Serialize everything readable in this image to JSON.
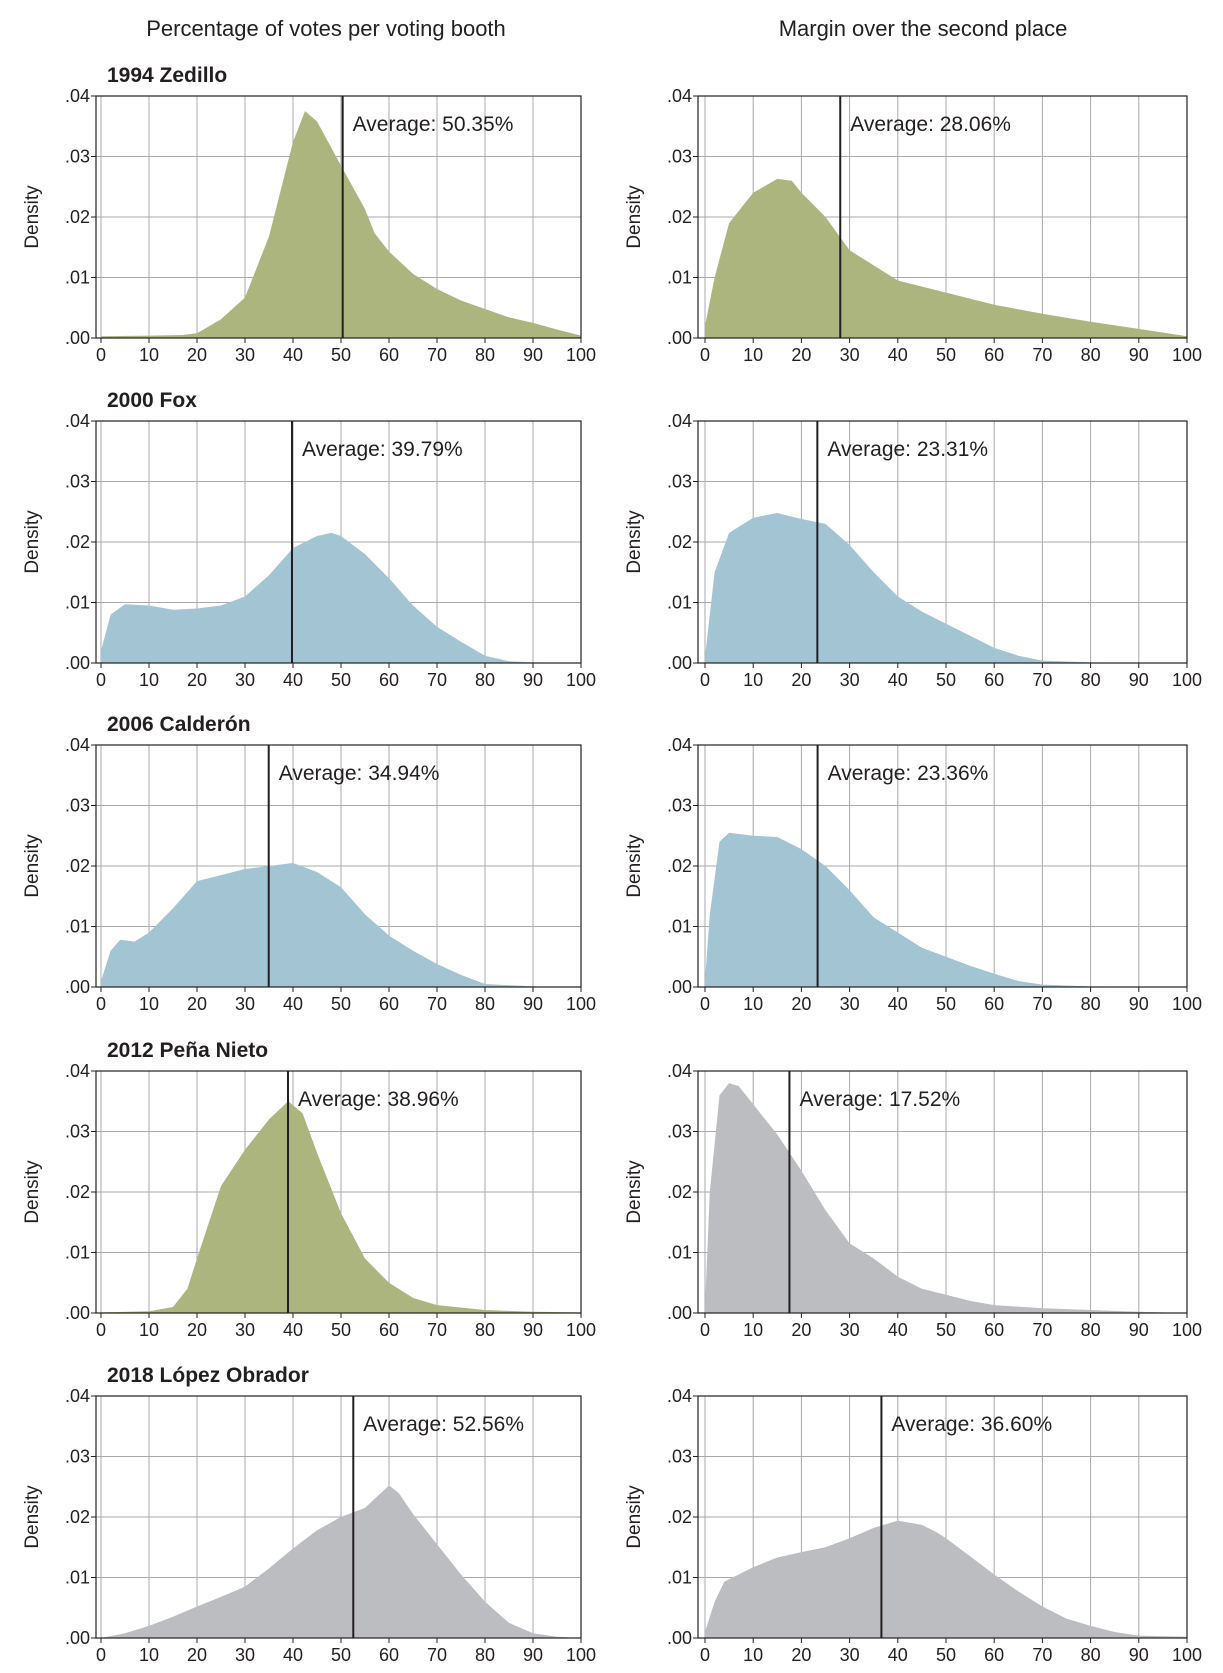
{
  "headers": {
    "left": "Percentage of votes per voting booth",
    "right": "Margin over the second place"
  },
  "colors": {
    "green": "#adb57f",
    "blue": "#a3c4d3",
    "gray": "#bcbdc0"
  },
  "chart_data": [
    {
      "type": "area",
      "title": "1994 Zedillo",
      "ylabel": "Density",
      "annotation": "Average: 50.35%",
      "average": 50.35,
      "color": "#adb57f",
      "xlim": [
        0,
        100
      ],
      "ylim": [
        0,
        0.04
      ],
      "xticks": [
        "0",
        "10",
        "20",
        "30",
        "40",
        "50",
        "60",
        "70",
        "80",
        "90",
        "100"
      ],
      "yticks": [
        ".00",
        ".01",
        ".02",
        ".03",
        ".04"
      ],
      "x": [
        0,
        10,
        17,
        20,
        25,
        30,
        35,
        40,
        42.5,
        45,
        50,
        55,
        57,
        60,
        65,
        70,
        75,
        80,
        85,
        90,
        95,
        100
      ],
      "y": [
        0.0003,
        0.0004,
        0.0005,
        0.0008,
        0.0031,
        0.0067,
        0.0168,
        0.0324,
        0.0375,
        0.0358,
        0.0285,
        0.0213,
        0.0173,
        0.0143,
        0.0106,
        0.0081,
        0.0062,
        0.0048,
        0.0034,
        0.0025,
        0.0014,
        0.0004
      ]
    },
    {
      "type": "area",
      "title": "",
      "ylabel": "Density",
      "annotation": "Average: 28.06%",
      "average": 28.06,
      "color": "#adb57f",
      "xlim": [
        0,
        100
      ],
      "ylim": [
        0,
        0.04
      ],
      "xticks": [
        "0",
        "10",
        "20",
        "30",
        "40",
        "50",
        "60",
        "70",
        "80",
        "90",
        "100"
      ],
      "yticks": [
        ".00",
        ".01",
        ".02",
        ".03",
        ".04"
      ],
      "x": [
        0,
        2,
        5,
        10,
        15,
        18,
        20,
        25,
        30,
        35,
        40,
        50,
        60,
        70,
        80,
        90,
        100
      ],
      "y": [
        0.002,
        0.01,
        0.019,
        0.024,
        0.0263,
        0.026,
        0.024,
        0.02,
        0.0145,
        0.012,
        0.0095,
        0.0075,
        0.0055,
        0.004,
        0.0027,
        0.0015,
        0.0003
      ]
    },
    {
      "type": "area",
      "title": "2000 Fox",
      "ylabel": "Density",
      "annotation": "Average: 39.79%",
      "average": 39.79,
      "color": "#a3c4d3",
      "xlim": [
        0,
        100
      ],
      "ylim": [
        0,
        0.04
      ],
      "xticks": [
        "0",
        "10",
        "20",
        "30",
        "40",
        "50",
        "60",
        "70",
        "80",
        "90",
        "100"
      ],
      "yticks": [
        ".00",
        ".01",
        ".02",
        ".03",
        ".04"
      ],
      "x": [
        0,
        2,
        5,
        10,
        15,
        20,
        25,
        30,
        35,
        40,
        45,
        48,
        50,
        55,
        60,
        65,
        70,
        75,
        80,
        85,
        90,
        100
      ],
      "y": [
        0.002,
        0.008,
        0.0097,
        0.0095,
        0.0088,
        0.009,
        0.0095,
        0.011,
        0.0145,
        0.019,
        0.021,
        0.0215,
        0.021,
        0.018,
        0.014,
        0.0095,
        0.006,
        0.0035,
        0.0012,
        0.0003,
        0.0001,
        0
      ]
    },
    {
      "type": "area",
      "title": "",
      "ylabel": "Density",
      "annotation": "Average: 23.31%",
      "average": 23.31,
      "color": "#a3c4d3",
      "xlim": [
        0,
        100
      ],
      "ylim": [
        0,
        0.04
      ],
      "xticks": [
        "0",
        "10",
        "20",
        "30",
        "40",
        "50",
        "60",
        "70",
        "80",
        "90",
        "100"
      ],
      "yticks": [
        ".00",
        ".01",
        ".02",
        ".03",
        ".04"
      ],
      "x": [
        0,
        2,
        5,
        10,
        15,
        20,
        25,
        30,
        35,
        40,
        45,
        50,
        55,
        60,
        65,
        70,
        80,
        100
      ],
      "y": [
        0.001,
        0.015,
        0.0215,
        0.024,
        0.0248,
        0.0238,
        0.023,
        0.0195,
        0.015,
        0.011,
        0.0085,
        0.0065,
        0.0045,
        0.0025,
        0.0012,
        0.0004,
        0.0001,
        0
      ]
    },
    {
      "type": "area",
      "title": "2006 Calderón",
      "ylabel": "Density",
      "annotation": "Average: 34.94%",
      "average": 34.94,
      "color": "#a3c4d3",
      "xlim": [
        0,
        100
      ],
      "ylim": [
        0,
        0.04
      ],
      "xticks": [
        "0",
        "10",
        "20",
        "30",
        "40",
        "50",
        "60",
        "70",
        "80",
        "90",
        "100"
      ],
      "yticks": [
        ".00",
        ".01",
        ".02",
        ".03",
        ".04"
      ],
      "x": [
        0,
        2,
        4,
        7,
        10,
        15,
        20,
        25,
        30,
        35,
        40,
        45,
        50,
        55,
        60,
        65,
        70,
        75,
        80,
        90,
        100
      ],
      "y": [
        0.001,
        0.006,
        0.0078,
        0.0075,
        0.009,
        0.013,
        0.0175,
        0.0185,
        0.0195,
        0.02,
        0.0205,
        0.019,
        0.0165,
        0.012,
        0.0085,
        0.006,
        0.0038,
        0.002,
        0.0005,
        0.0001,
        0
      ]
    },
    {
      "type": "area",
      "title": "",
      "ylabel": "Density",
      "annotation": "Average: 23.36%",
      "average": 23.36,
      "color": "#a3c4d3",
      "xlim": [
        0,
        100
      ],
      "ylim": [
        0,
        0.04
      ],
      "xticks": [
        "0",
        "10",
        "20",
        "30",
        "40",
        "50",
        "60",
        "70",
        "80",
        "90",
        "100"
      ],
      "yticks": [
        ".00",
        ".01",
        ".02",
        ".03",
        ".04"
      ],
      "x": [
        0,
        1,
        3,
        5,
        10,
        15,
        20,
        25,
        30,
        35,
        40,
        45,
        50,
        55,
        60,
        65,
        70,
        80,
        100
      ],
      "y": [
        0.001,
        0.012,
        0.024,
        0.0255,
        0.025,
        0.0248,
        0.0228,
        0.02,
        0.016,
        0.0115,
        0.009,
        0.0065,
        0.005,
        0.0035,
        0.0022,
        0.001,
        0.0004,
        0.0001,
        0
      ]
    },
    {
      "type": "area",
      "title": "2012 Peña Nieto",
      "ylabel": "Density",
      "annotation": "Average: 38.96%",
      "average": 38.96,
      "color": "#adb57f",
      "xlim": [
        0,
        100
      ],
      "ylim": [
        0,
        0.04
      ],
      "xticks": [
        "0",
        "10",
        "20",
        "30",
        "40",
        "50",
        "60",
        "70",
        "80",
        "90",
        "100"
      ],
      "yticks": [
        ".00",
        ".01",
        ".02",
        ".03",
        ".04"
      ],
      "x": [
        0,
        10,
        15,
        18,
        20,
        25,
        30,
        35,
        39,
        42,
        45,
        50,
        55,
        60,
        65,
        70,
        80,
        90,
        100
      ],
      "y": [
        0.0001,
        0.0003,
        0.001,
        0.004,
        0.009,
        0.021,
        0.027,
        0.032,
        0.035,
        0.033,
        0.0265,
        0.0165,
        0.009,
        0.005,
        0.0025,
        0.0013,
        0.0005,
        0.0002,
        0.0001
      ]
    },
    {
      "type": "area",
      "title": "",
      "ylabel": "Density",
      "annotation": "Average: 17.52%",
      "average": 17.52,
      "color": "#bcbdc0",
      "xlim": [
        0,
        100
      ],
      "ylim": [
        0,
        0.04
      ],
      "xticks": [
        "0",
        "10",
        "20",
        "30",
        "40",
        "50",
        "60",
        "70",
        "80",
        "90",
        "100"
      ],
      "yticks": [
        ".00",
        ".01",
        ".02",
        ".03",
        ".04"
      ],
      "x": [
        0,
        1,
        3,
        5,
        7,
        10,
        15,
        20,
        25,
        30,
        35,
        40,
        45,
        50,
        55,
        60,
        70,
        80,
        90,
        100
      ],
      "y": [
        0.001,
        0.02,
        0.036,
        0.038,
        0.0375,
        0.0345,
        0.0295,
        0.0235,
        0.017,
        0.0115,
        0.009,
        0.006,
        0.004,
        0.003,
        0.002,
        0.0013,
        0.0008,
        0.0005,
        0.0002,
        0
      ]
    },
    {
      "type": "area",
      "title": "2018 López Obrador",
      "ylabel": "Density",
      "annotation": "Average: 52.56%",
      "average": 52.56,
      "color": "#bcbdc0",
      "xlim": [
        0,
        100
      ],
      "ylim": [
        0,
        0.04
      ],
      "xticks": [
        "0",
        "10",
        "20",
        "30",
        "40",
        "50",
        "60",
        "70",
        "80",
        "90",
        "100"
      ],
      "yticks": [
        ".00",
        ".01",
        ".02",
        ".03",
        ".04"
      ],
      "x": [
        0,
        5,
        10,
        15,
        20,
        25,
        30,
        35,
        40,
        45,
        50,
        55,
        60,
        62,
        65,
        70,
        75,
        80,
        85,
        90,
        95,
        100
      ],
      "y": [
        0,
        0.0008,
        0.002,
        0.0035,
        0.0052,
        0.0068,
        0.0085,
        0.0115,
        0.0148,
        0.0178,
        0.02,
        0.0215,
        0.0252,
        0.024,
        0.0205,
        0.0155,
        0.0105,
        0.006,
        0.0025,
        0.0008,
        0.0002,
        0
      ]
    },
    {
      "type": "area",
      "title": "",
      "ylabel": "Density",
      "annotation": "Average: 36.60%",
      "average": 36.6,
      "color": "#bcbdc0",
      "xlim": [
        0,
        100
      ],
      "ylim": [
        0,
        0.04
      ],
      "xticks": [
        "0",
        "10",
        "20",
        "30",
        "40",
        "50",
        "60",
        "70",
        "80",
        "90",
        "100"
      ],
      "yticks": [
        ".00",
        ".01",
        ".02",
        ".03",
        ".04"
      ],
      "x": [
        0,
        2,
        4,
        5,
        10,
        15,
        20,
        25,
        30,
        35,
        40,
        45,
        48,
        50,
        55,
        60,
        65,
        70,
        75,
        80,
        85,
        90,
        100
      ],
      "y": [
        0.001,
        0.006,
        0.0093,
        0.0097,
        0.0117,
        0.0133,
        0.0142,
        0.015,
        0.0165,
        0.0182,
        0.0194,
        0.0187,
        0.0175,
        0.0165,
        0.0135,
        0.0105,
        0.0077,
        0.0052,
        0.0032,
        0.002,
        0.001,
        0.0004,
        0.0002
      ]
    }
  ]
}
